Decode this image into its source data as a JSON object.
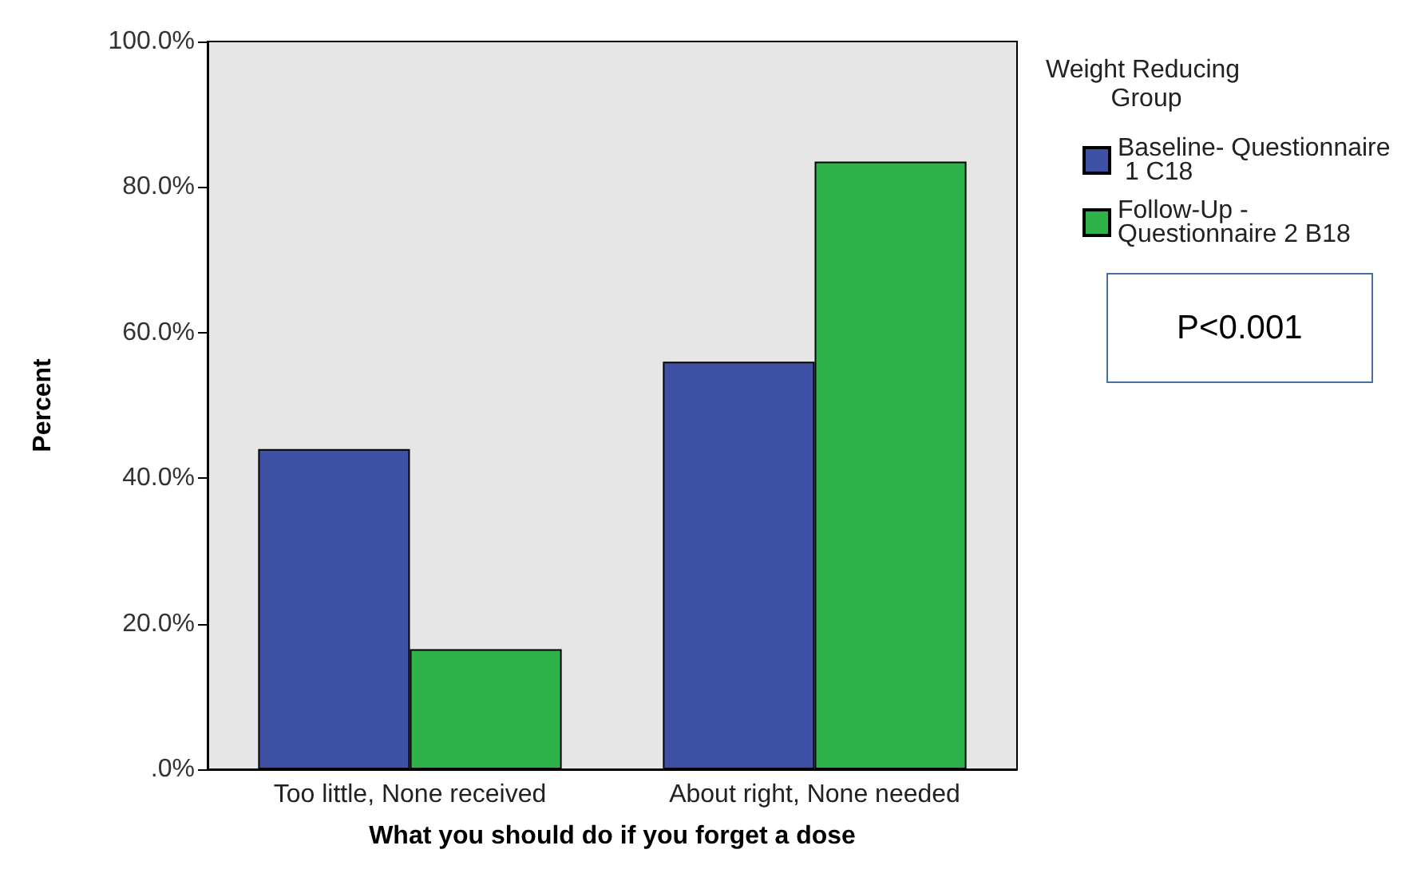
{
  "chart_data": {
    "type": "bar",
    "xlabel": "What you should do if you forget a dose",
    "ylabel": "Percent",
    "legend_title": "Weight Reducing Group",
    "categories": [
      "Too little, None received",
      "About right, None needed"
    ],
    "series": [
      {
        "name": "Baseline- Questionnaire 1 C18",
        "color": "#3f51a5",
        "values": [
          44.0,
          56.0
        ]
      },
      {
        "name": "Follow-Up - Questionnaire 2 B18",
        "color": "#2db34a",
        "values": [
          16.5,
          83.5
        ]
      }
    ],
    "ylim": [
      0,
      100
    ],
    "yticks": [
      {
        "value": 0,
        "label": ".0%"
      },
      {
        "value": 20,
        "label": "20.0%"
      },
      {
        "value": 40,
        "label": "40.0%"
      },
      {
        "value": 60,
        "label": "60.0%"
      },
      {
        "value": 80,
        "label": "80.0%"
      },
      {
        "value": 100,
        "label": "100.0%"
      }
    ],
    "grid": false,
    "legend": "right",
    "annotations": [
      "P<0.001"
    ]
  }
}
